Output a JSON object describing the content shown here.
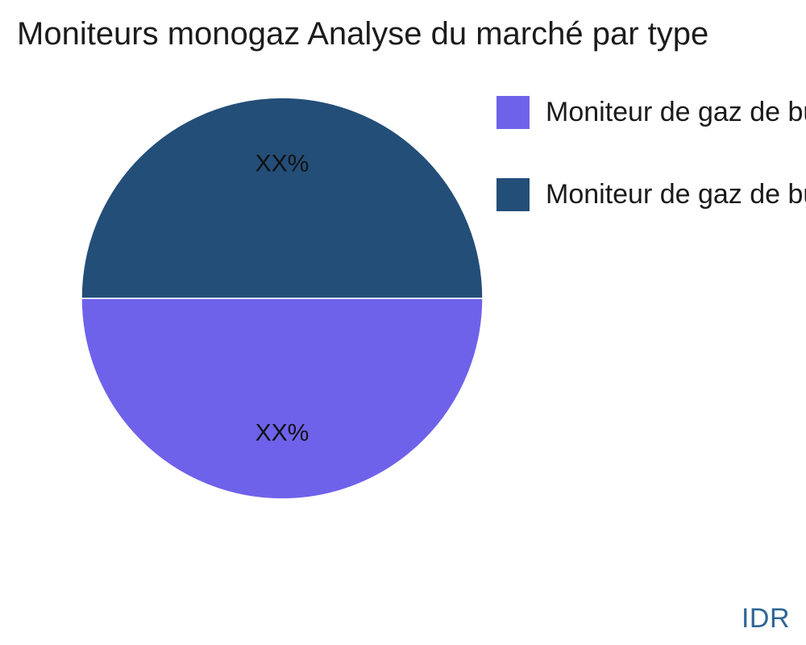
{
  "title": "Moniteurs monogaz Analyse du marché par type",
  "watermark": {
    "text": "IDR",
    "color": "#2f6795"
  },
  "chart_data": {
    "type": "pie",
    "title": "Moniteurs monogaz Analyse du marché par type",
    "values": [
      50,
      50
    ],
    "labels": [
      "Moniteur de gaz de bu",
      "Moniteur de gaz de bu"
    ],
    "slice_labels": [
      "XX%",
      "XX%"
    ],
    "colors": [
      "#6f62ea",
      "#234e78"
    ],
    "start_angle_deg": 180,
    "direction": "counterclockwise",
    "legend_position": "right",
    "label_distance_fraction": 0.67
  }
}
